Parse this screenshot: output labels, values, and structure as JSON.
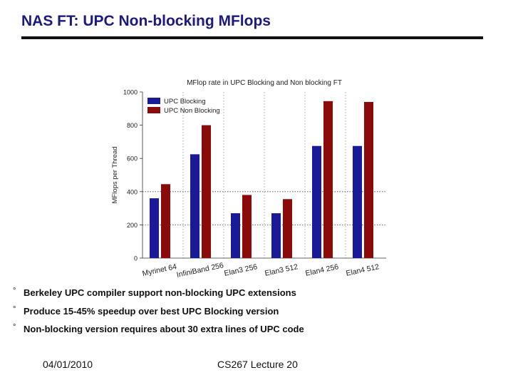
{
  "slide": {
    "title": "NAS FT: UPC Non-blocking MFlops",
    "bullet_symbol": "°",
    "bullets": [
      "Berkeley UPC compiler support non-blocking UPC extensions",
      "Produce 15-45% speedup over best UPC Blocking version",
      "Non-blocking version requires about 30 extra lines of UPC code"
    ],
    "footer": {
      "date": "04/01/2010",
      "lecture": "CS267 Lecture 20"
    }
  },
  "chart_data": {
    "type": "bar",
    "title": "MFlop rate in UPC Blocking and Non blocking FT",
    "xlabel": "",
    "ylabel": "MFlops per Thread",
    "ylim": [
      0,
      1000
    ],
    "yticks": [
      0,
      200,
      400,
      600,
      800,
      1000
    ],
    "categories": [
      "Myrinet 64",
      "InfiniBand 256",
      "Elan3 256",
      "Elan3 512",
      "Elan4 256",
      "Elan4 512"
    ],
    "series": [
      {
        "name": "UPC Blocking",
        "color": "#1a1a99",
        "values": [
          360,
          625,
          270,
          270,
          675,
          675
        ]
      },
      {
        "name": "UPC Non Blocking",
        "color": "#8b0a0a",
        "values": [
          445,
          800,
          380,
          355,
          945,
          940
        ]
      }
    ],
    "grid": "dotted reference lines at 200 and 400; dotted vertical dividers between interconnect groups",
    "legend": "top-left"
  }
}
